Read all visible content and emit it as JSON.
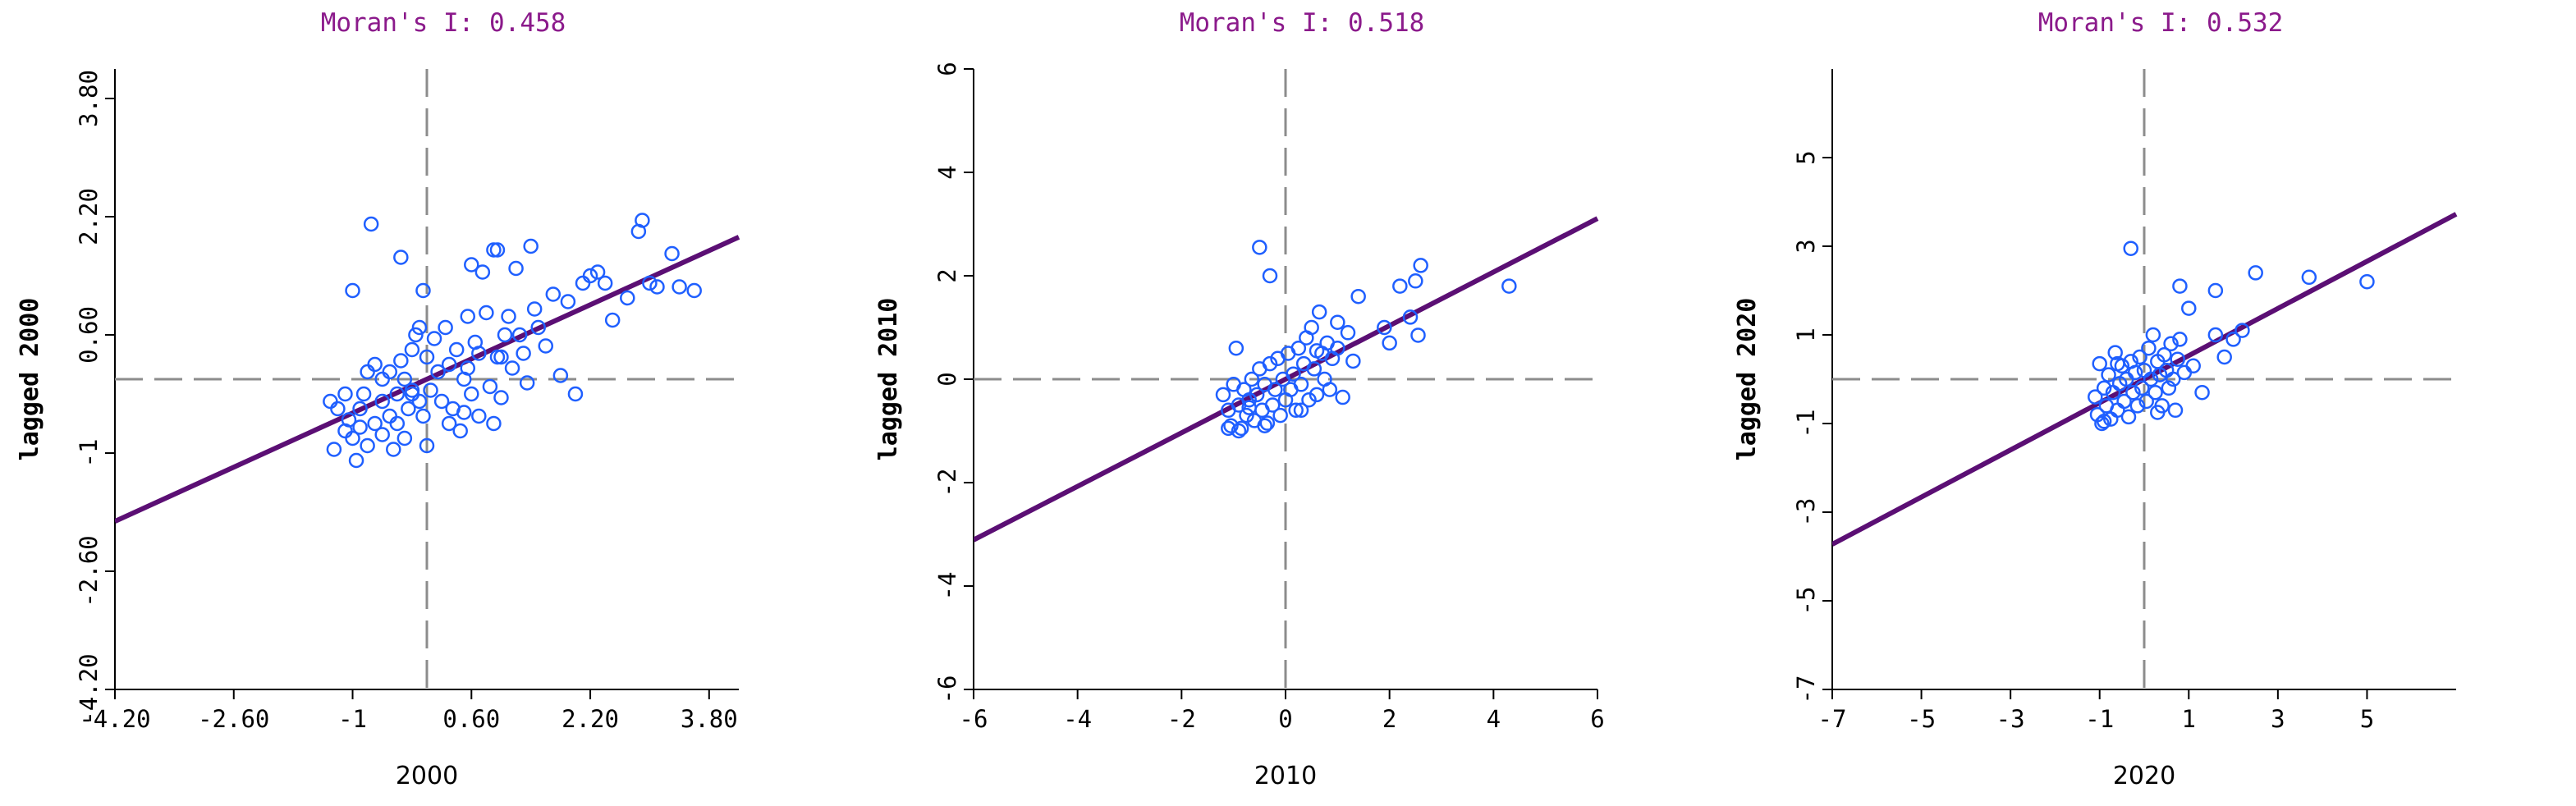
{
  "colors": {
    "point": "#1f5fff",
    "fit_line": "#5b0f74",
    "guide": "#8c8c8c",
    "title": "#8b1a8b"
  },
  "chart_data": [
    {
      "type": "scatter",
      "title": "Moran's I: 0.458",
      "xlabel": "2000",
      "ylabel": "lagged 2000",
      "xlim": [
        -4.2,
        4.2
      ],
      "ylim": [
        -4.2,
        4.2
      ],
      "xticks": [
        "-4.20",
        "-2.60",
        "-1",
        "0.60",
        "2.20",
        "3.80"
      ],
      "yticks": [
        "-4.20",
        "-2.60",
        "-1",
        "0.60",
        "2.20",
        "3.80"
      ],
      "xtick_values": [
        -4.2,
        -2.6,
        -1.0,
        0.6,
        2.2,
        3.8
      ],
      "ytick_values": [
        -4.2,
        -2.6,
        -1.0,
        0.6,
        2.2,
        3.8
      ],
      "mean_x": 0,
      "mean_y": 0,
      "slope": 0.458,
      "points": [
        [
          -1.3,
          -0.3
        ],
        [
          -1.2,
          -0.4
        ],
        [
          -1.1,
          -0.2
        ],
        [
          -1.05,
          -0.55
        ],
        [
          -1.0,
          -0.8
        ],
        [
          -0.95,
          -1.1
        ],
        [
          -0.9,
          -0.4
        ],
        [
          -0.85,
          -0.2
        ],
        [
          -0.8,
          0.1
        ],
        [
          -0.8,
          -0.9
        ],
        [
          -0.7,
          -0.6
        ],
        [
          -0.7,
          0.2
        ],
        [
          -0.6,
          -0.3
        ],
        [
          -0.6,
          -0.75
        ],
        [
          -0.5,
          -0.5
        ],
        [
          -0.5,
          0.1
        ],
        [
          -0.45,
          -0.95
        ],
        [
          -0.4,
          -0.2
        ],
        [
          -0.4,
          -0.6
        ],
        [
          -0.35,
          0.25
        ],
        [
          -0.3,
          0.0
        ],
        [
          -0.3,
          -0.8
        ],
        [
          -0.25,
          -0.4
        ],
        [
          -0.2,
          0.4
        ],
        [
          -0.2,
          -0.15
        ],
        [
          -0.15,
          0.6
        ],
        [
          -0.1,
          0.7
        ],
        [
          -0.1,
          -0.3
        ],
        [
          -0.05,
          1.2
        ],
        [
          -0.05,
          -0.5
        ],
        [
          0.0,
          0.3
        ],
        [
          0.0,
          -0.9
        ],
        [
          0.05,
          -0.15
        ],
        [
          0.1,
          0.55
        ],
        [
          0.15,
          0.1
        ],
        [
          0.2,
          -0.3
        ],
        [
          0.25,
          0.7
        ],
        [
          0.3,
          0.2
        ],
        [
          0.35,
          -0.4
        ],
        [
          0.4,
          0.4
        ],
        [
          0.45,
          -0.7
        ],
        [
          0.5,
          0.0
        ],
        [
          0.55,
          0.85
        ],
        [
          0.6,
          -0.2
        ],
        [
          0.65,
          0.5
        ],
        [
          0.7,
          -0.5
        ],
        [
          0.75,
          1.45
        ],
        [
          0.8,
          0.9
        ],
        [
          0.85,
          -0.1
        ],
        [
          0.9,
          1.75
        ],
        [
          0.95,
          0.3
        ],
        [
          1.0,
          -0.25
        ],
        [
          1.05,
          0.6
        ],
        [
          1.1,
          0.85
        ],
        [
          1.15,
          0.15
        ],
        [
          1.2,
          1.5
        ],
        [
          1.25,
          0.6
        ],
        [
          1.3,
          0.35
        ],
        [
          1.35,
          -0.05
        ],
        [
          1.4,
          1.8
        ],
        [
          1.45,
          0.95
        ],
        [
          1.5,
          0.7
        ],
        [
          1.6,
          0.45
        ],
        [
          1.7,
          1.15
        ],
        [
          1.8,
          0.05
        ],
        [
          1.9,
          1.05
        ],
        [
          2.0,
          -0.2
        ],
        [
          2.1,
          1.3
        ],
        [
          2.2,
          1.4
        ],
        [
          2.3,
          1.45
        ],
        [
          2.4,
          1.3
        ],
        [
          2.5,
          0.8
        ],
        [
          2.7,
          1.1
        ],
        [
          2.85,
          2.0
        ],
        [
          2.9,
          2.15
        ],
        [
          3.0,
          1.3
        ],
        [
          3.1,
          1.25
        ],
        [
          3.3,
          1.7
        ],
        [
          3.6,
          1.2
        ],
        [
          3.4,
          1.25
        ],
        [
          -1.25,
          -0.95
        ],
        [
          -1.1,
          -0.7
        ],
        [
          -1.0,
          1.2
        ],
        [
          -0.75,
          2.1
        ],
        [
          -0.35,
          1.65
        ],
        [
          0.95,
          1.75
        ],
        [
          0.6,
          1.55
        ],
        [
          -0.6,
          0.0
        ],
        [
          -0.2,
          -0.2
        ],
        [
          0.3,
          -0.6
        ],
        [
          0.5,
          -0.45
        ],
        [
          0.55,
          0.15
        ],
        [
          0.7,
          0.35
        ],
        [
          0.9,
          -0.6
        ],
        [
          1.0,
          0.3
        ],
        [
          -0.9,
          -0.65
        ]
      ]
    },
    {
      "type": "scatter",
      "title": "Moran's I: 0.518",
      "xlabel": "2010",
      "ylabel": "lagged 2010",
      "xlim": [
        -6,
        6
      ],
      "ylim": [
        -6,
        6
      ],
      "xticks": [
        "-6",
        "-4",
        "-2",
        "0",
        "2",
        "4",
        "6"
      ],
      "yticks": [
        "-6",
        "-4",
        "-2",
        "0",
        "2",
        "4",
        "6"
      ],
      "xtick_values": [
        -6,
        -4,
        -2,
        0,
        2,
        4,
        6
      ],
      "ytick_values": [
        -6,
        -4,
        -2,
        0,
        2,
        4,
        6
      ],
      "mean_x": 0,
      "mean_y": 0,
      "slope": 0.518,
      "points": [
        [
          -1.2,
          -0.3
        ],
        [
          -1.1,
          -0.6
        ],
        [
          -1.05,
          -0.9
        ],
        [
          -1.0,
          -0.1
        ],
        [
          -0.95,
          0.6
        ],
        [
          -0.9,
          -0.5
        ],
        [
          -0.85,
          -0.95
        ],
        [
          -0.8,
          -0.2
        ],
        [
          -0.75,
          -0.7
        ],
        [
          -0.7,
          -0.4
        ],
        [
          -0.65,
          0.0
        ],
        [
          -0.6,
          -0.8
        ],
        [
          -0.55,
          -0.3
        ],
        [
          -0.5,
          0.2
        ],
        [
          -0.45,
          -0.6
        ],
        [
          -0.4,
          -0.1
        ],
        [
          -0.35,
          -0.85
        ],
        [
          -0.3,
          0.3
        ],
        [
          -0.25,
          -0.5
        ],
        [
          -0.2,
          -0.2
        ],
        [
          -0.15,
          0.4
        ],
        [
          -0.1,
          -0.7
        ],
        [
          -0.05,
          0.0
        ],
        [
          0.0,
          -0.4
        ],
        [
          0.05,
          0.5
        ],
        [
          0.1,
          -0.2
        ],
        [
          0.15,
          0.1
        ],
        [
          0.2,
          -0.6
        ],
        [
          0.25,
          0.6
        ],
        [
          0.3,
          -0.1
        ],
        [
          0.35,
          0.3
        ],
        [
          0.4,
          0.8
        ],
        [
          0.45,
          -0.4
        ],
        [
          0.5,
          1.0
        ],
        [
          0.55,
          0.2
        ],
        [
          0.6,
          -0.3
        ],
        [
          0.65,
          1.3
        ],
        [
          0.7,
          0.5
        ],
        [
          0.75,
          0.0
        ],
        [
          0.8,
          0.7
        ],
        [
          0.85,
          -0.2
        ],
        [
          0.9,
          0.4
        ],
        [
          1.0,
          0.6
        ],
        [
          1.1,
          -0.35
        ],
        [
          1.2,
          0.9
        ],
        [
          1.3,
          0.35
        ],
        [
          1.4,
          1.6
        ],
        [
          1.9,
          1.0
        ],
        [
          2.0,
          0.7
        ],
        [
          2.2,
          1.8
        ],
        [
          2.4,
          1.2
        ],
        [
          2.5,
          1.9
        ],
        [
          2.55,
          0.85
        ],
        [
          2.6,
          2.2
        ],
        [
          4.3,
          1.8
        ],
        [
          -0.5,
          2.55
        ],
        [
          -0.3,
          2.0
        ],
        [
          -1.1,
          -0.95
        ],
        [
          -0.9,
          -1.0
        ],
        [
          -0.7,
          -0.55
        ],
        [
          -0.4,
          -0.9
        ],
        [
          0.3,
          -0.6
        ],
        [
          0.6,
          0.55
        ],
        [
          1.0,
          1.1
        ]
      ]
    },
    {
      "type": "scatter",
      "title": "Moran's I: 0.532",
      "xlabel": "2020",
      "ylabel": "lagged 2020",
      "xlim": [
        -7,
        7
      ],
      "ylim": [
        -7,
        7
      ],
      "xticks": [
        "-7",
        "-5",
        "-3",
        "-1",
        "1",
        "3",
        "5"
      ],
      "yticks": [
        "-7",
        "-5",
        "-3",
        "-1",
        "1",
        "3",
        "5"
      ],
      "xtick_values": [
        -7,
        -5,
        -3,
        -1,
        1,
        3,
        5
      ],
      "ytick_values": [
        -7,
        -5,
        -3,
        -1,
        1,
        3,
        5
      ],
      "mean_x": 0,
      "mean_y": 0,
      "slope": 0.532,
      "points": [
        [
          -1.1,
          -0.4
        ],
        [
          -1.05,
          -0.8
        ],
        [
          -1.0,
          0.35
        ],
        [
          -0.95,
          -1.0
        ],
        [
          -0.9,
          -0.2
        ],
        [
          -0.85,
          -0.6
        ],
        [
          -0.8,
          0.1
        ],
        [
          -0.75,
          -0.9
        ],
        [
          -0.7,
          -0.3
        ],
        [
          -0.65,
          0.6
        ],
        [
          -0.6,
          -0.7
        ],
        [
          -0.55,
          -0.1
        ],
        [
          -0.5,
          0.3
        ],
        [
          -0.45,
          -0.5
        ],
        [
          -0.4,
          0.0
        ],
        [
          -0.35,
          -0.85
        ],
        [
          -0.3,
          0.4
        ],
        [
          -0.25,
          -0.3
        ],
        [
          -0.2,
          0.15
        ],
        [
          -0.15,
          -0.6
        ],
        [
          -0.1,
          0.5
        ],
        [
          -0.05,
          -0.2
        ],
        [
          0.0,
          0.2
        ],
        [
          0.05,
          -0.5
        ],
        [
          0.1,
          0.7
        ],
        [
          0.15,
          0.0
        ],
        [
          0.2,
          1.0
        ],
        [
          0.25,
          -0.3
        ],
        [
          0.3,
          0.4
        ],
        [
          0.35,
          0.1
        ],
        [
          0.4,
          -0.6
        ],
        [
          0.45,
          0.55
        ],
        [
          0.5,
          0.2
        ],
        [
          0.55,
          -0.2
        ],
        [
          0.6,
          0.8
        ],
        [
          0.65,
          0.0
        ],
        [
          0.7,
          -0.7
        ],
        [
          0.75,
          0.45
        ],
        [
          0.8,
          0.9
        ],
        [
          0.9,
          0.15
        ],
        [
          1.0,
          1.6
        ],
        [
          1.1,
          0.3
        ],
        [
          1.3,
          -0.3
        ],
        [
          1.6,
          1.0
        ],
        [
          1.8,
          0.5
        ],
        [
          2.0,
          0.9
        ],
        [
          2.2,
          1.1
        ],
        [
          2.5,
          2.4
        ],
        [
          3.7,
          2.3
        ],
        [
          5.0,
          2.2
        ],
        [
          -0.3,
          2.95
        ],
        [
          1.6,
          2.0
        ],
        [
          0.8,
          2.1
        ],
        [
          -0.9,
          -0.95
        ],
        [
          -0.6,
          0.35
        ],
        [
          0.3,
          -0.75
        ]
      ]
    }
  ]
}
